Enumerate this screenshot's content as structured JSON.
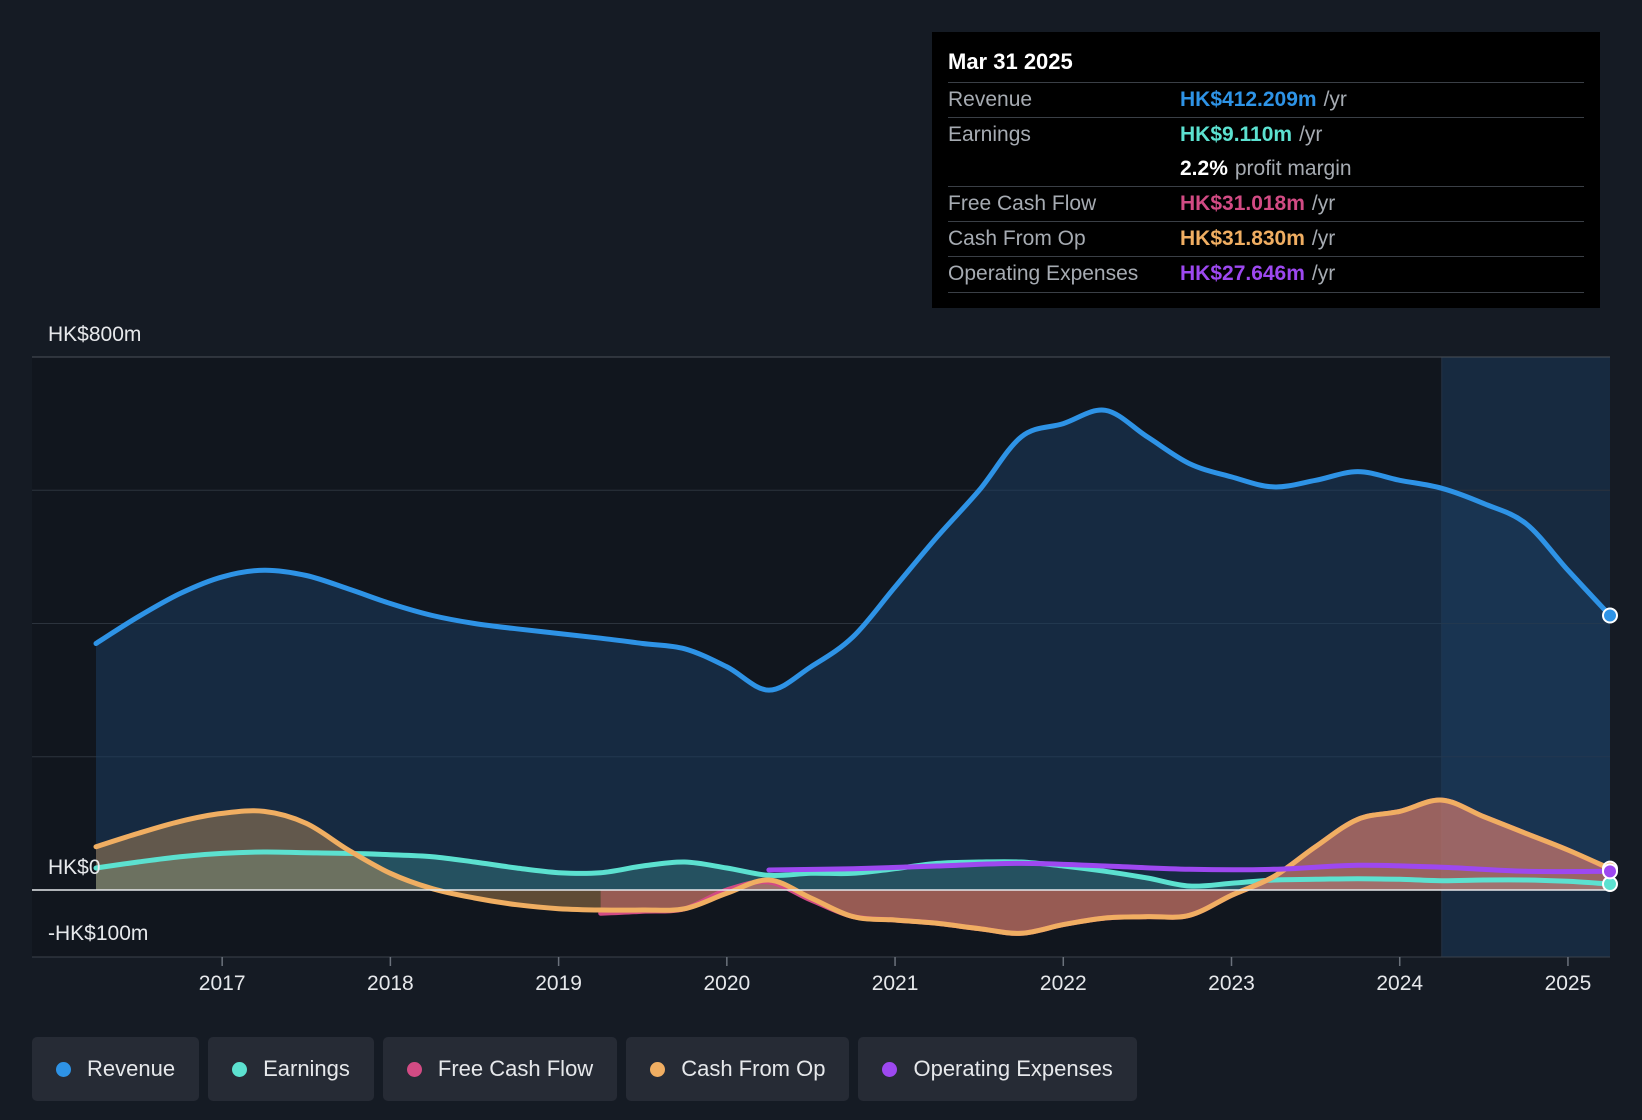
{
  "tooltip": {
    "date": "Mar 31 2025",
    "rows": [
      {
        "label": "Revenue",
        "value": "HK$412.209m",
        "unit": "/yr",
        "color": "#2e93e6"
      },
      {
        "label": "Earnings",
        "value": "HK$9.110m",
        "unit": "/yr",
        "color": "#5ce1d0"
      },
      {
        "label": "",
        "value": "2.2%",
        "unit": "profit margin",
        "color": "#ffffff"
      },
      {
        "label": "Free Cash Flow",
        "value": "HK$31.018m",
        "unit": "/yr",
        "color": "#d24b84"
      },
      {
        "label": "Cash From Op",
        "value": "HK$31.830m",
        "unit": "/yr",
        "color": "#f0ae62"
      },
      {
        "label": "Operating Expenses",
        "value": "HK$27.646m",
        "unit": "/yr",
        "color": "#9d48f0"
      }
    ]
  },
  "legend": [
    {
      "label": "Revenue",
      "color": "#2e93e6"
    },
    {
      "label": "Earnings",
      "color": "#5ce1d0"
    },
    {
      "label": "Free Cash Flow",
      "color": "#d24b84"
    },
    {
      "label": "Cash From Op",
      "color": "#f0ae62"
    },
    {
      "label": "Operating Expenses",
      "color": "#9d48f0"
    }
  ],
  "chart_data": {
    "type": "line",
    "y_labels": [
      {
        "value": 800,
        "text": "HK$800m"
      },
      {
        "value": 0,
        "text": "HK$0"
      },
      {
        "value": -100,
        "text": "-HK$100m"
      }
    ],
    "ylim": [
      -100,
      800
    ],
    "xlim": [
      2016.25,
      2025.25
    ],
    "x_ticks": [
      2017,
      2018,
      2019,
      2020,
      2021,
      2022,
      2023,
      2024,
      2025
    ],
    "x_tick_labels": [
      "2017",
      "2018",
      "2019",
      "2020",
      "2021",
      "2022",
      "2023",
      "2024",
      "2025"
    ],
    "grid": true,
    "highlight_start": 2024.25,
    "series": [
      {
        "name": "Revenue",
        "color": "#2e93e6",
        "fill": true,
        "points": [
          [
            2016.25,
            370
          ],
          [
            2016.5,
            410
          ],
          [
            2016.75,
            445
          ],
          [
            2017,
            470
          ],
          [
            2017.25,
            480
          ],
          [
            2017.5,
            472
          ],
          [
            2017.75,
            452
          ],
          [
            2018,
            430
          ],
          [
            2018.25,
            412
          ],
          [
            2018.5,
            400
          ],
          [
            2018.75,
            392
          ],
          [
            2019,
            385
          ],
          [
            2019.25,
            378
          ],
          [
            2019.5,
            370
          ],
          [
            2019.75,
            362
          ],
          [
            2020,
            335
          ],
          [
            2020.25,
            300
          ],
          [
            2020.5,
            335
          ],
          [
            2020.75,
            380
          ],
          [
            2021,
            455
          ],
          [
            2021.25,
            530
          ],
          [
            2021.5,
            600
          ],
          [
            2021.75,
            680
          ],
          [
            2022,
            700
          ],
          [
            2022.25,
            720
          ],
          [
            2022.5,
            680
          ],
          [
            2022.75,
            640
          ],
          [
            2023,
            620
          ],
          [
            2023.25,
            605
          ],
          [
            2023.5,
            615
          ],
          [
            2023.75,
            628
          ],
          [
            2024,
            615
          ],
          [
            2024.25,
            603
          ],
          [
            2024.5,
            580
          ],
          [
            2024.75,
            550
          ],
          [
            2025,
            480
          ],
          [
            2025.25,
            412
          ]
        ]
      },
      {
        "name": "Earnings",
        "color": "#5ce1d0",
        "fill": true,
        "points": [
          [
            2016.25,
            33
          ],
          [
            2016.5,
            42
          ],
          [
            2016.75,
            50
          ],
          [
            2017,
            55
          ],
          [
            2017.25,
            57
          ],
          [
            2017.5,
            56
          ],
          [
            2017.75,
            55
          ],
          [
            2018,
            53
          ],
          [
            2018.25,
            50
          ],
          [
            2018.5,
            42
          ],
          [
            2018.75,
            33
          ],
          [
            2019,
            26
          ],
          [
            2019.25,
            26
          ],
          [
            2019.5,
            36
          ],
          [
            2019.75,
            42
          ],
          [
            2020,
            33
          ],
          [
            2020.25,
            22
          ],
          [
            2020.5,
            25
          ],
          [
            2020.75,
            25
          ],
          [
            2021,
            32
          ],
          [
            2021.25,
            40
          ],
          [
            2021.5,
            42
          ],
          [
            2021.75,
            42
          ],
          [
            2022,
            36
          ],
          [
            2022.25,
            28
          ],
          [
            2022.5,
            18
          ],
          [
            2022.75,
            6
          ],
          [
            2023,
            10
          ],
          [
            2023.25,
            15
          ],
          [
            2023.5,
            16
          ],
          [
            2023.75,
            17
          ],
          [
            2024,
            16
          ],
          [
            2024.25,
            14
          ],
          [
            2024.5,
            15
          ],
          [
            2024.75,
            15
          ],
          [
            2025,
            13
          ],
          [
            2025.25,
            9
          ]
        ]
      },
      {
        "name": "Free Cash Flow",
        "color": "#d24b84",
        "fill": true,
        "points": [
          [
            2019.25,
            -35
          ],
          [
            2019.5,
            -32
          ],
          [
            2019.75,
            -28
          ],
          [
            2020,
            0
          ],
          [
            2020.25,
            12
          ],
          [
            2020.5,
            -15
          ],
          [
            2020.75,
            -40
          ],
          [
            2021,
            -45
          ],
          [
            2021.25,
            -50
          ],
          [
            2021.5,
            -58
          ],
          [
            2021.75,
            -65
          ],
          [
            2022,
            -52
          ],
          [
            2022.25,
            -42
          ],
          [
            2022.5,
            -40
          ],
          [
            2022.75,
            -38
          ],
          [
            2023,
            -8
          ],
          [
            2023.25,
            20
          ],
          [
            2023.5,
            65
          ],
          [
            2023.75,
            106
          ],
          [
            2024,
            118
          ],
          [
            2024.25,
            135
          ],
          [
            2024.5,
            110
          ],
          [
            2024.75,
            85
          ],
          [
            2025,
            60
          ],
          [
            2025.25,
            31
          ]
        ]
      },
      {
        "name": "Cash From Op",
        "color": "#f0ae62",
        "fill": true,
        "points": [
          [
            2016.25,
            65
          ],
          [
            2016.5,
            85
          ],
          [
            2016.75,
            103
          ],
          [
            2017,
            115
          ],
          [
            2017.25,
            118
          ],
          [
            2017.5,
            100
          ],
          [
            2017.75,
            60
          ],
          [
            2018,
            25
          ],
          [
            2018.25,
            2
          ],
          [
            2018.5,
            -12
          ],
          [
            2018.75,
            -22
          ],
          [
            2019,
            -28
          ],
          [
            2019.25,
            -30
          ],
          [
            2019.5,
            -30
          ],
          [
            2019.75,
            -28
          ],
          [
            2020,
            -5
          ],
          [
            2020.25,
            15
          ],
          [
            2020.5,
            -12
          ],
          [
            2020.75,
            -40
          ],
          [
            2021,
            -45
          ],
          [
            2021.25,
            -50
          ],
          [
            2021.5,
            -58
          ],
          [
            2021.75,
            -65
          ],
          [
            2022,
            -52
          ],
          [
            2022.25,
            -42
          ],
          [
            2022.5,
            -40
          ],
          [
            2022.75,
            -38
          ],
          [
            2023,
            -8
          ],
          [
            2023.25,
            20
          ],
          [
            2023.5,
            65
          ],
          [
            2023.75,
            106
          ],
          [
            2024,
            118
          ],
          [
            2024.25,
            135
          ],
          [
            2024.5,
            110
          ],
          [
            2024.75,
            85
          ],
          [
            2025,
            60
          ],
          [
            2025.25,
            32
          ]
        ]
      },
      {
        "name": "Operating Expenses",
        "color": "#9d48f0",
        "fill": false,
        "points": [
          [
            2020.25,
            30
          ],
          [
            2020.75,
            32
          ],
          [
            2021.25,
            36
          ],
          [
            2021.75,
            40
          ],
          [
            2022.25,
            36
          ],
          [
            2022.75,
            31
          ],
          [
            2023.25,
            31
          ],
          [
            2023.75,
            37
          ],
          [
            2024.25,
            34
          ],
          [
            2024.75,
            28
          ],
          [
            2025.25,
            28
          ]
        ]
      }
    ]
  }
}
